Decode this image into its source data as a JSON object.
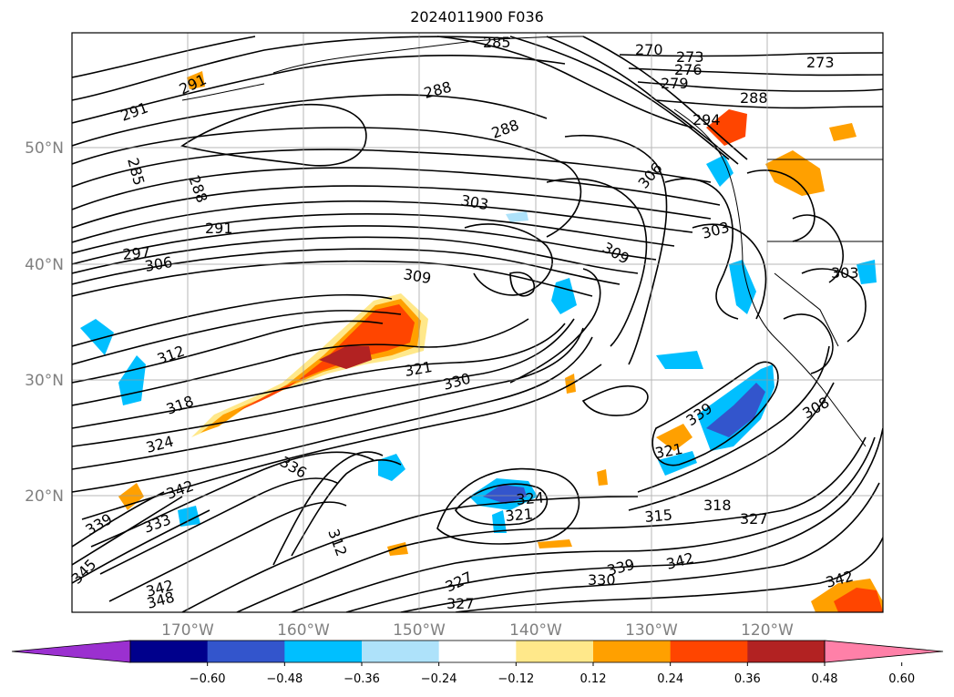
{
  "title": "2024011900 F036",
  "lon_labels": [
    "170°W",
    "160°W",
    "150°W",
    "140°W",
    "130°W",
    "120°W"
  ],
  "lat_labels": [
    "50°N",
    "40°N",
    "30°N",
    "20°N"
  ],
  "colorbar": {
    "ticks": [
      "−0.60",
      "−0.48",
      "−0.36",
      "−0.24",
      "−0.12",
      "0.12",
      "0.24",
      "0.36",
      "0.48",
      "0.60"
    ],
    "colors": [
      "#9b30d0",
      "#00008c",
      "#3355cc",
      "#00bfff",
      "#aee2fa",
      "#ffffff",
      "#ffe88a",
      "#ffa000",
      "#ff4500",
      "#b22222",
      "#ff80a8"
    ]
  },
  "contour_labels": [
    "285",
    "270",
    "273",
    "276",
    "279",
    "273",
    "291",
    "291",
    "288",
    "288",
    "285",
    "288",
    "294",
    "288",
    "306",
    "303",
    "291",
    "297",
    "306",
    "309",
    "309",
    "303",
    "312",
    "321",
    "330",
    "318",
    "324",
    "336",
    "342",
    "339",
    "333",
    "345",
    "348",
    "342",
    "312",
    "324",
    "321",
    "315",
    "318",
    "327",
    "321",
    "339",
    "339",
    "342",
    "330",
    "327",
    "327",
    "342",
    "308",
    "303"
  ]
}
